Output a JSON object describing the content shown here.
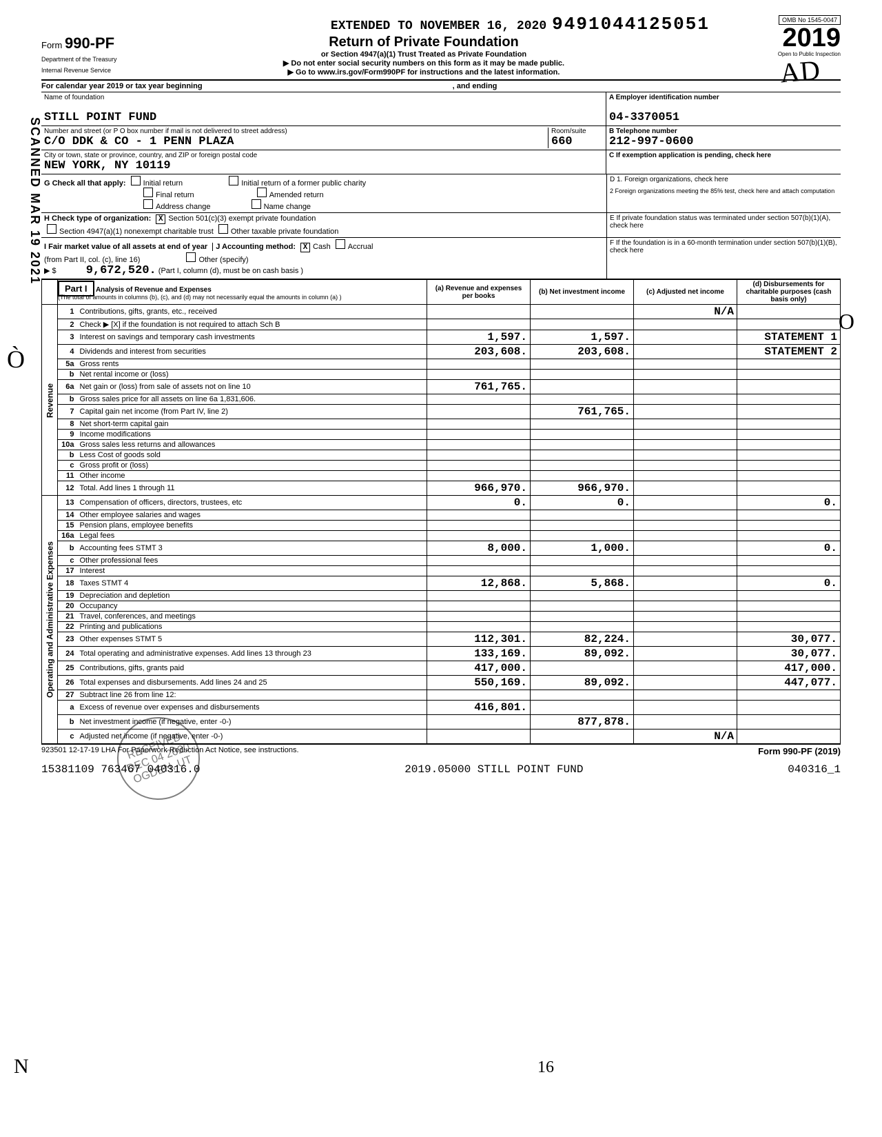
{
  "header": {
    "form_type": "Form",
    "form_number": "990-PF",
    "dept1": "Department of the Treasury",
    "dept2": "Internal Revenue Service",
    "extended": "EXTENDED TO NOVEMBER 16, 2020",
    "dln": "9491044125051",
    "title": "Return of Private Foundation",
    "subtitle1": "or Section 4947(a)(1) Trust Treated as Private Foundation",
    "subtitle2": "▶ Do not enter social security numbers on this form as it may be made public.",
    "subtitle3": "▶ Go to www.irs.gov/Form990PF for instructions and the latest information.",
    "omb": "OMB No 1545-0047",
    "year": "2019",
    "inspect": "Open to Public Inspection"
  },
  "side_stamp": "SCANNED MAR 19 2021",
  "cal_year": "For calendar year 2019 or tax year beginning",
  "cal_year_mid": ", and ending",
  "entity": {
    "name_label": "Name of foundation",
    "name": "STILL POINT FUND",
    "ein_label": "A Employer identification number",
    "ein": "04-3370051",
    "addr_label": "Number and street (or P O  box number if mail is not delivered to street address)",
    "addr": "C/O DDK & CO - 1 PENN PLAZA",
    "room_label": "Room/suite",
    "room": "660",
    "phone_label": "B Telephone number",
    "phone": "212-997-0600",
    "city_label": "City or town, state or province, country, and ZIP or foreign postal code",
    "city": "NEW YORK, NY   10119",
    "c_label": "C If exemption application is pending, check here"
  },
  "g": {
    "label": "G Check all that apply:",
    "opt1": "Initial return",
    "opt2": "Initial return of a former public charity",
    "opt3": "Final return",
    "opt4": "Amended return",
    "opt5": "Address change",
    "opt6": "Name change",
    "d1": "D 1. Foreign organizations, check here",
    "d2": "2 Foreign organizations meeting the 85% test, check here and attach computation"
  },
  "h": {
    "label": "H Check type of organization:",
    "opt1": "Section 501(c)(3) exempt private foundation",
    "opt1_check": "X",
    "opt2": "Section 4947(a)(1) nonexempt charitable trust",
    "opt3": "Other taxable private foundation",
    "e_label": "E If private foundation status was terminated under section 507(b)(1)(A), check here"
  },
  "i": {
    "label": "I Fair market value of all assets at end of year",
    "from": "(from Part II, col. (c), line 16)",
    "amount": "9,672,520.",
    "j_label": "J Accounting method:",
    "cash": "Cash",
    "cash_check": "X",
    "accrual": "Accrual",
    "other": "Other (specify)",
    "note": "(Part I, column (d), must be on cash basis )",
    "f_label": "F If the foundation is in a 60-month termination under section 507(b)(1)(B), check here"
  },
  "part1": {
    "label": "Part I",
    "title": "Analysis of Revenue and Expenses",
    "note": "(The total of amounts in columns (b), (c), and (d) may not necessarily equal the amounts in column (a) )",
    "col_a": "(a) Revenue and expenses per books",
    "col_b": "(b) Net investment income",
    "col_c": "(c) Adjusted net income",
    "col_d": "(d) Disbursements for charitable purposes (cash basis only)"
  },
  "revenue_label": "Revenue",
  "expenses_label": "Operating and Administrative Expenses",
  "rows": [
    {
      "n": "1",
      "d": "Contributions, gifts, grants, etc., received",
      "a": "",
      "b": "",
      "c": "N/A",
      "e": ""
    },
    {
      "n": "2",
      "d": "Check ▶ [X] if the foundation is not required to attach Sch B",
      "a": "",
      "b": "",
      "c": "",
      "e": ""
    },
    {
      "n": "3",
      "d": "Interest on savings and temporary cash investments",
      "a": "1,597.",
      "b": "1,597.",
      "c": "",
      "e": "STATEMENT 1"
    },
    {
      "n": "4",
      "d": "Dividends and interest from securities",
      "a": "203,608.",
      "b": "203,608.",
      "c": "",
      "e": "STATEMENT 2"
    },
    {
      "n": "5a",
      "d": "Gross rents",
      "a": "",
      "b": "",
      "c": "",
      "e": ""
    },
    {
      "n": "b",
      "d": "Net rental income or (loss)",
      "a": "",
      "b": "",
      "c": "",
      "e": ""
    },
    {
      "n": "6a",
      "d": "Net gain or (loss) from sale of assets not on line 10",
      "a": "761,765.",
      "b": "",
      "c": "",
      "e": ""
    },
    {
      "n": "b",
      "d": "Gross sales price for all assets on line 6a    1,831,606.",
      "a": "",
      "b": "",
      "c": "",
      "e": ""
    },
    {
      "n": "7",
      "d": "Capital gain net income (from Part IV, line 2)",
      "a": "",
      "b": "761,765.",
      "c": "",
      "e": ""
    },
    {
      "n": "8",
      "d": "Net short-term capital gain",
      "a": "",
      "b": "",
      "c": "",
      "e": ""
    },
    {
      "n": "9",
      "d": "Income modifications",
      "a": "",
      "b": "",
      "c": "",
      "e": ""
    },
    {
      "n": "10a",
      "d": "Gross sales less returns and allowances",
      "a": "",
      "b": "",
      "c": "",
      "e": ""
    },
    {
      "n": "b",
      "d": "Less Cost of goods sold",
      "a": "",
      "b": "",
      "c": "",
      "e": ""
    },
    {
      "n": "c",
      "d": "Gross profit or (loss)",
      "a": "",
      "b": "",
      "c": "",
      "e": ""
    },
    {
      "n": "11",
      "d": "Other income",
      "a": "",
      "b": "",
      "c": "",
      "e": ""
    },
    {
      "n": "12",
      "d": "Total. Add lines 1 through 11",
      "a": "966,970.",
      "b": "966,970.",
      "c": "",
      "e": ""
    },
    {
      "n": "13",
      "d": "Compensation of officers, directors, trustees, etc",
      "a": "0.",
      "b": "0.",
      "c": "",
      "e": "0."
    },
    {
      "n": "14",
      "d": "Other employee salaries and wages",
      "a": "",
      "b": "",
      "c": "",
      "e": ""
    },
    {
      "n": "15",
      "d": "Pension plans, employee benefits",
      "a": "",
      "b": "",
      "c": "",
      "e": ""
    },
    {
      "n": "16a",
      "d": "Legal fees",
      "a": "",
      "b": "",
      "c": "",
      "e": ""
    },
    {
      "n": "b",
      "d": "Accounting fees               STMT 3",
      "a": "8,000.",
      "b": "1,000.",
      "c": "",
      "e": "0."
    },
    {
      "n": "c",
      "d": "Other professional fees",
      "a": "",
      "b": "",
      "c": "",
      "e": ""
    },
    {
      "n": "17",
      "d": "Interest",
      "a": "",
      "b": "",
      "c": "",
      "e": ""
    },
    {
      "n": "18",
      "d": "Taxes                         STMT 4",
      "a": "12,868.",
      "b": "5,868.",
      "c": "",
      "e": "0."
    },
    {
      "n": "19",
      "d": "Depreciation and depletion",
      "a": "",
      "b": "",
      "c": "",
      "e": ""
    },
    {
      "n": "20",
      "d": "Occupancy",
      "a": "",
      "b": "",
      "c": "",
      "e": ""
    },
    {
      "n": "21",
      "d": "Travel, conferences, and meetings",
      "a": "",
      "b": "",
      "c": "",
      "e": ""
    },
    {
      "n": "22",
      "d": "Printing and publications",
      "a": "",
      "b": "",
      "c": "",
      "e": ""
    },
    {
      "n": "23",
      "d": "Other expenses                STMT 5",
      "a": "112,301.",
      "b": "82,224.",
      "c": "",
      "e": "30,077."
    },
    {
      "n": "24",
      "d": "Total operating and administrative expenses. Add lines 13 through 23",
      "a": "133,169.",
      "b": "89,092.",
      "c": "",
      "e": "30,077."
    },
    {
      "n": "25",
      "d": "Contributions, gifts, grants paid",
      "a": "417,000.",
      "b": "",
      "c": "",
      "e": "417,000."
    },
    {
      "n": "26",
      "d": "Total expenses and disbursements. Add lines 24 and 25",
      "a": "550,169.",
      "b": "89,092.",
      "c": "",
      "e": "447,077."
    },
    {
      "n": "27",
      "d": "Subtract line 26 from line 12:",
      "a": "",
      "b": "",
      "c": "",
      "e": ""
    },
    {
      "n": "a",
      "d": "Excess of revenue over expenses and disbursements",
      "a": "416,801.",
      "b": "",
      "c": "",
      "e": ""
    },
    {
      "n": "b",
      "d": "Net investment income (if negative, enter -0-)",
      "a": "",
      "b": "877,878.",
      "c": "",
      "e": ""
    },
    {
      "n": "c",
      "d": "Adjusted net income (if negative, enter -0-)",
      "a": "",
      "b": "",
      "c": "N/A",
      "e": ""
    }
  ],
  "footer": {
    "code": "923501 12-17-19",
    "lha": "LHA  For Paperwork Reduction Act Notice, see instructions.",
    "form": "Form 990-PF (2019)"
  },
  "bottom": {
    "left": "15381109 763467 040316.0",
    "mid": "2019.05000 STILL POINT FUND",
    "right": "040316_1"
  },
  "stamp": {
    "l1": "RECEIVED",
    "l2": "DEC 04 2020",
    "l3": "OGDEN, UT"
  },
  "hand": {
    "initials_top": "AD",
    "page_hand": "16",
    "arrow_right": "⟳"
  }
}
